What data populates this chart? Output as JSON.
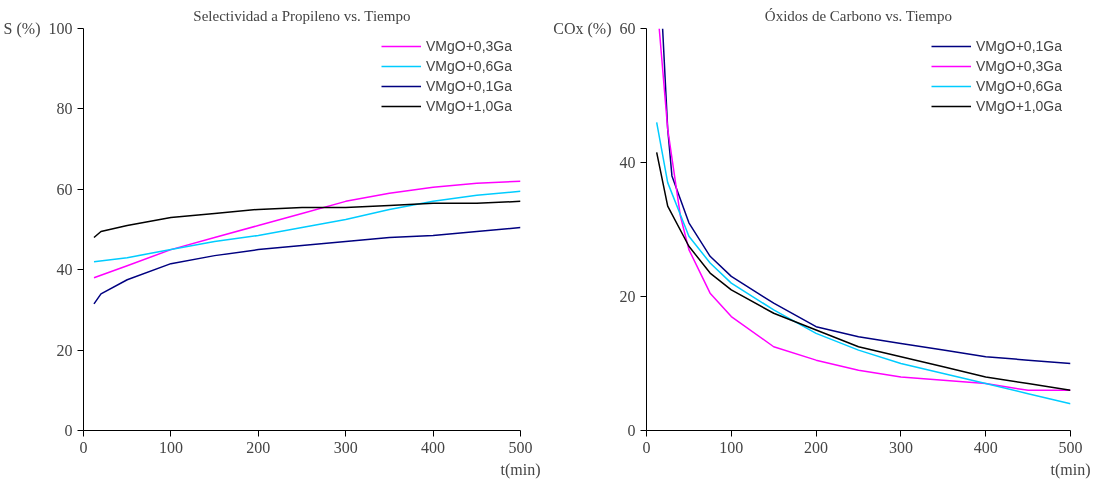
{
  "chart_data": [
    {
      "type": "line",
      "title": "Selectividad a Propileno vs. Tiempo",
      "xlabel": "t(min)",
      "ylabel": "S (%)",
      "xlim": [
        0,
        500
      ],
      "ylim": [
        0,
        100
      ],
      "xticks": [
        0,
        100,
        200,
        300,
        400,
        500
      ],
      "yticks": [
        0,
        20,
        40,
        60,
        80,
        100
      ],
      "grid": false,
      "legend": "top right",
      "marker": "none",
      "line_style": "solid",
      "series": [
        {
          "name": "VMgO+0,3Ga",
          "color": "#ff00ff",
          "x": [
            12,
            50,
            100,
            150,
            200,
            250,
            300,
            350,
            400,
            450,
            500
          ],
          "values": [
            38,
            41,
            45,
            48,
            51,
            54,
            57,
            59,
            60.5,
            61.5,
            62
          ]
        },
        {
          "name": "VMgO+0,6Ga",
          "color": "#00ccff",
          "x": [
            12,
            50,
            100,
            150,
            200,
            250,
            300,
            350,
            400,
            450,
            500
          ],
          "values": [
            42,
            43,
            45,
            47,
            48.5,
            50.5,
            52.5,
            55,
            57,
            58.5,
            59.5
          ]
        },
        {
          "name": "VMgO+0,1Ga",
          "color": "#000080",
          "x": [
            12,
            20,
            50,
            100,
            150,
            200,
            250,
            300,
            350,
            400,
            450,
            500
          ],
          "values": [
            31.5,
            34,
            37.5,
            41.5,
            43.5,
            45,
            46,
            47,
            48,
            48.5,
            49.5,
            50.5
          ]
        },
        {
          "name": "VMgO+1,0Ga",
          "color": "#000000",
          "x": [
            12,
            20,
            50,
            100,
            150,
            200,
            250,
            300,
            350,
            400,
            450,
            500
          ],
          "values": [
            48,
            49.5,
            51,
            53,
            54,
            55,
            55.5,
            55.5,
            56,
            56.5,
            56.5,
            57
          ]
        }
      ]
    },
    {
      "type": "line",
      "title": "Óxidos de Carbono vs. Tiempo",
      "xlabel": "t(min)",
      "ylabel": "COx (%)",
      "xlim": [
        0,
        500
      ],
      "ylim": [
        0,
        60
      ],
      "xticks": [
        0,
        100,
        200,
        300,
        400,
        500
      ],
      "yticks": [
        0,
        20,
        40,
        60
      ],
      "grid": false,
      "legend": "top right",
      "marker": "none",
      "line_style": "solid",
      "series": [
        {
          "name": "VMgO+0,1Ga",
          "color": "#000080",
          "x": [
            19,
            25,
            30,
            50,
            75,
            100,
            150,
            200,
            250,
            300,
            350,
            400,
            450,
            500
          ],
          "values": [
            60,
            45,
            38,
            31,
            26,
            23,
            19,
            15.5,
            14,
            13,
            12,
            11,
            10.5,
            10
          ]
        },
        {
          "name": "VMgO+0,3Ga",
          "color": "#ff00ff",
          "x": [
            15,
            25,
            40,
            50,
            75,
            100,
            150,
            200,
            250,
            300,
            350,
            400,
            450,
            500
          ],
          "values": [
            60,
            45,
            32,
            27,
            20.5,
            17,
            12.5,
            10.5,
            9,
            8,
            7.5,
            7,
            6,
            6
          ]
        },
        {
          "name": "VMgO+0,6Ga",
          "color": "#00ccff",
          "x": [
            12,
            25,
            50,
            75,
            100,
            150,
            200,
            250,
            300,
            350,
            400,
            450,
            500
          ],
          "values": [
            46,
            37,
            29,
            25,
            22,
            18,
            14.5,
            12,
            10,
            8.5,
            7,
            5.5,
            4
          ]
        },
        {
          "name": "VMgO+1,0Ga",
          "color": "#000000",
          "x": [
            12,
            25,
            50,
            75,
            100,
            150,
            200,
            250,
            300,
            350,
            400,
            450,
            500
          ],
          "values": [
            41.5,
            33.5,
            27.5,
            23.5,
            21,
            17.5,
            15,
            12.5,
            11,
            9.5,
            8,
            7,
            6
          ]
        }
      ]
    }
  ]
}
